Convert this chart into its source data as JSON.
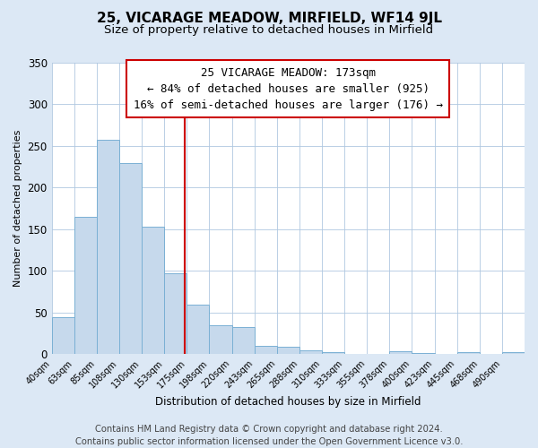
{
  "title": "25, VICARAGE MEADOW, MIRFIELD, WF14 9JL",
  "subtitle": "Size of property relative to detached houses in Mirfield",
  "xlabel": "Distribution of detached houses by size in Mirfield",
  "ylabel": "Number of detached properties",
  "bar_values": [
    44,
    165,
    257,
    230,
    153,
    97,
    60,
    35,
    33,
    10,
    9,
    5,
    2,
    0,
    0,
    4,
    1,
    0,
    2,
    0,
    2
  ],
  "bin_labels": [
    "40sqm",
    "63sqm",
    "85sqm",
    "108sqm",
    "130sqm",
    "153sqm",
    "175sqm",
    "198sqm",
    "220sqm",
    "243sqm",
    "265sqm",
    "288sqm",
    "310sqm",
    "333sqm",
    "355sqm",
    "378sqm",
    "400sqm",
    "423sqm",
    "445sqm",
    "468sqm",
    "490sqm"
  ],
  "bar_color": "#c6d9ec",
  "bar_edge_color": "#7ab0d4",
  "vline_color": "#cc0000",
  "annotation_line1": "25 VICARAGE MEADOW: 173sqm",
  "annotation_line2": "← 84% of detached houses are smaller (925)",
  "annotation_line3": "16% of semi-detached houses are larger (176) →",
  "ylim": [
    0,
    350
  ],
  "yticks": [
    0,
    50,
    100,
    150,
    200,
    250,
    300,
    350
  ],
  "footer_text": "Contains HM Land Registry data © Crown copyright and database right 2024.\nContains public sector information licensed under the Open Government Licence v3.0.",
  "background_color": "#dce8f5",
  "plot_bg_color": "#dce8f5",
  "chart_bg_color": "#ffffff",
  "title_fontsize": 11,
  "subtitle_fontsize": 9.5,
  "footer_fontsize": 7.2,
  "annotation_fontsize": 9
}
